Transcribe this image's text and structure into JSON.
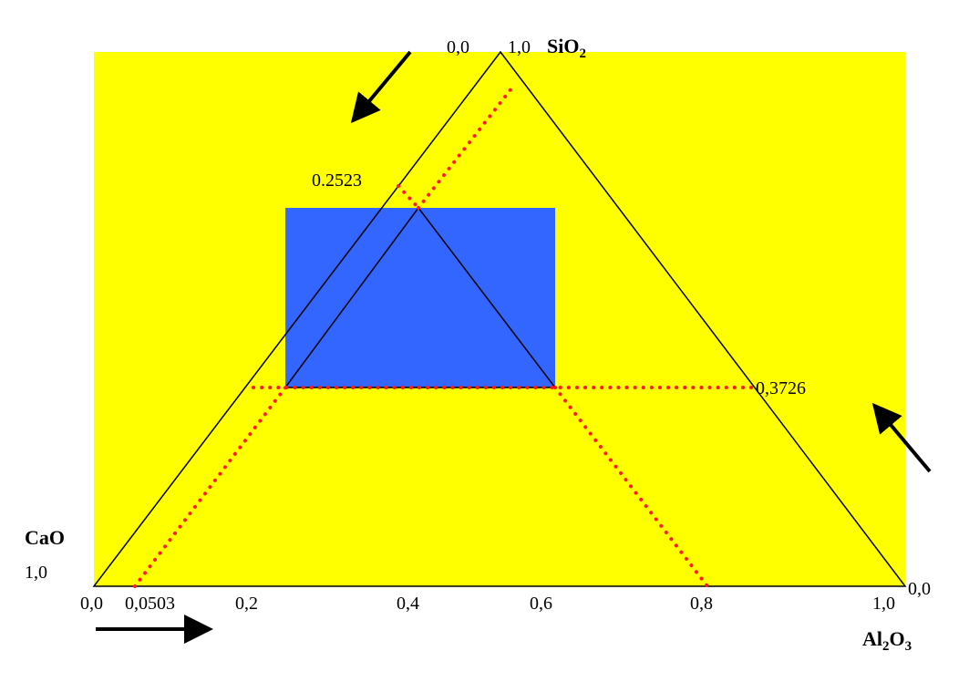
{
  "labels": {
    "top_zero": "0,0",
    "top_one": "1,0",
    "sio2": {
      "base": "SiO",
      "sub": "2"
    },
    "upper_value": "0.2523",
    "right_value": "0,3726",
    "cao": "CaO",
    "left_one": "1,0",
    "right_zero": "0,0",
    "al2o3": {
      "p1": "Al",
      "s1": "2",
      "p2": "O",
      "s2": "3"
    },
    "bottom_ticks": [
      "0,0",
      "0,0503",
      "0,2",
      "0,4",
      "0,6",
      "0,8",
      "1,0"
    ]
  }
}
